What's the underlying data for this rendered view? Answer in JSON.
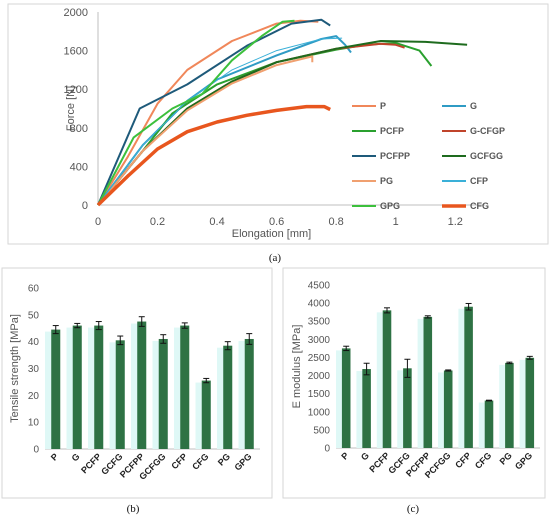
{
  "captions": {
    "a": "(a)",
    "b": "(b)",
    "c": "(c)"
  },
  "chart_data": [
    {
      "type": "line",
      "xlabel": "Elongation [mm]",
      "ylabel": "Force [N]",
      "xlim": [
        0,
        1.3
      ],
      "ylim": [
        0,
        2000
      ],
      "x_ticks": [
        "0",
        "0.2",
        "0.4",
        "0.6",
        "0.8",
        "1",
        "1.2"
      ],
      "y_ticks": [
        "0",
        "400",
        "800",
        "1200",
        "1600",
        "2000"
      ],
      "grid": false,
      "legend_position": "right",
      "series": [
        {
          "name": "P",
          "color": "#f0875a",
          "width": 2,
          "points": [
            [
              0,
              0
            ],
            [
              0.1,
              500
            ],
            [
              0.2,
              1050
            ],
            [
              0.3,
              1400
            ],
            [
              0.45,
              1700
            ],
            [
              0.6,
              1880
            ],
            [
              0.68,
              1910
            ],
            [
              0.74,
              1900
            ]
          ]
        },
        {
          "name": "G",
          "color": "#2f9bc4",
          "width": 2,
          "points": [
            [
              0,
              0
            ],
            [
              0.15,
              620
            ],
            [
              0.3,
              1080
            ],
            [
              0.4,
              1300
            ],
            [
              0.6,
              1550
            ],
            [
              0.75,
              1720
            ],
            [
              0.8,
              1750
            ],
            [
              0.83,
              1660
            ],
            [
              0.85,
              1580
            ]
          ]
        },
        {
          "name": "PCFP",
          "color": "#2aa02f",
          "width": 2,
          "points": [
            [
              0,
              0
            ],
            [
              0.15,
              560
            ],
            [
              0.25,
              950
            ],
            [
              0.4,
              1250
            ],
            [
              0.6,
              1480
            ],
            [
              0.8,
              1610
            ],
            [
              0.9,
              1660
            ],
            [
              1.0,
              1680
            ],
            [
              1.08,
              1600
            ],
            [
              1.12,
              1440
            ]
          ]
        },
        {
          "name": "G-CFGP",
          "color": "#c0442b",
          "width": 2,
          "points": [
            [
              0,
              0
            ],
            [
              0.15,
              560
            ],
            [
              0.3,
              1000
            ],
            [
              0.45,
              1280
            ],
            [
              0.6,
              1480
            ],
            [
              0.8,
              1620
            ],
            [
              0.95,
              1670
            ],
            [
              1.0,
              1660
            ],
            [
              1.03,
              1630
            ]
          ]
        },
        {
          "name": "PCFPP",
          "color": "#1e5a7a",
          "width": 2,
          "points": [
            [
              0,
              0
            ],
            [
              0.14,
              1000
            ],
            [
              0.3,
              1250
            ],
            [
              0.5,
              1650
            ],
            [
              0.65,
              1880
            ],
            [
              0.75,
              1920
            ],
            [
              0.78,
              1860
            ]
          ]
        },
        {
          "name": "GCFGG",
          "color": "#1e6b1e",
          "width": 2,
          "points": [
            [
              0,
              0
            ],
            [
              0.15,
              560
            ],
            [
              0.3,
              1000
            ],
            [
              0.45,
              1280
            ],
            [
              0.6,
              1480
            ],
            [
              0.8,
              1620
            ],
            [
              0.95,
              1700
            ],
            [
              1.1,
              1690
            ],
            [
              1.24,
              1660
            ]
          ]
        },
        {
          "name": "PG",
          "color": "#f0a070",
          "width": 2,
          "points": [
            [
              0,
              0
            ],
            [
              0.15,
              560
            ],
            [
              0.3,
              980
            ],
            [
              0.45,
              1260
            ],
            [
              0.6,
              1450
            ],
            [
              0.72,
              1540
            ],
            [
              0.72,
              1480
            ]
          ]
        },
        {
          "name": "CFP",
          "color": "#3ab0d8",
          "width": 1,
          "points": [
            [
              0,
              0
            ],
            [
              0.15,
              620
            ],
            [
              0.3,
              1080
            ],
            [
              0.45,
              1400
            ],
            [
              0.6,
              1600
            ],
            [
              0.75,
              1720
            ],
            [
              0.82,
              1730
            ]
          ]
        },
        {
          "name": "GPG",
          "color": "#3cc03c",
          "width": 2,
          "points": [
            [
              0,
              0
            ],
            [
              0.12,
              700
            ],
            [
              0.25,
              1000
            ],
            [
              0.35,
              1150
            ],
            [
              0.45,
              1500
            ],
            [
              0.55,
              1750
            ],
            [
              0.62,
              1900
            ],
            [
              0.66,
              1910
            ]
          ]
        },
        {
          "name": "CFG",
          "color": "#e8561e",
          "width": 3.5,
          "points": [
            [
              0,
              0
            ],
            [
              0.1,
              300
            ],
            [
              0.2,
              580
            ],
            [
              0.3,
              760
            ],
            [
              0.4,
              860
            ],
            [
              0.5,
              930
            ],
            [
              0.6,
              980
            ],
            [
              0.7,
              1020
            ],
            [
              0.76,
              1020
            ],
            [
              0.78,
              990
            ]
          ]
        }
      ]
    },
    {
      "type": "bar",
      "ylabel": "Tensile strength [MPa]",
      "ylim": [
        0,
        60
      ],
      "y_ticks": [
        "0",
        "10",
        "20",
        "30",
        "40",
        "50",
        "60"
      ],
      "categories": [
        "P",
        "G",
        "PCFP",
        "GCFG",
        "PCFPP",
        "GCFGG",
        "CFP",
        "CFG",
        "PG",
        "GPG"
      ],
      "values": [
        44.5,
        46,
        46,
        40.5,
        47.5,
        41,
        46,
        25.5,
        38.5,
        41
      ],
      "errors": [
        1.5,
        0.8,
        1.5,
        1.6,
        1.8,
        1.6,
        1,
        0.8,
        1.5,
        2
      ],
      "bar_color": "#2e7244",
      "shadow_color": "#dff8f6"
    },
    {
      "type": "bar",
      "ylabel": "E modulus [MPa]",
      "ylim": [
        0,
        4500
      ],
      "y_ticks": [
        "0",
        "500",
        "1000",
        "1500",
        "2000",
        "2500",
        "3000",
        "3500",
        "4000",
        "4500"
      ],
      "categories": [
        "P",
        "G",
        "PCFP",
        "GCFG",
        "PCFPP",
        "PCFGG",
        "CFP",
        "CFG",
        "PG",
        "GPG"
      ],
      "values": [
        2750,
        2180,
        3800,
        2200,
        3620,
        2140,
        3900,
        1310,
        2350,
        2490
      ],
      "errors": [
        60,
        160,
        70,
        250,
        30,
        15,
        90,
        10,
        20,
        40
      ],
      "bar_color": "#2e7244",
      "shadow_color": "#dff8f6"
    }
  ]
}
